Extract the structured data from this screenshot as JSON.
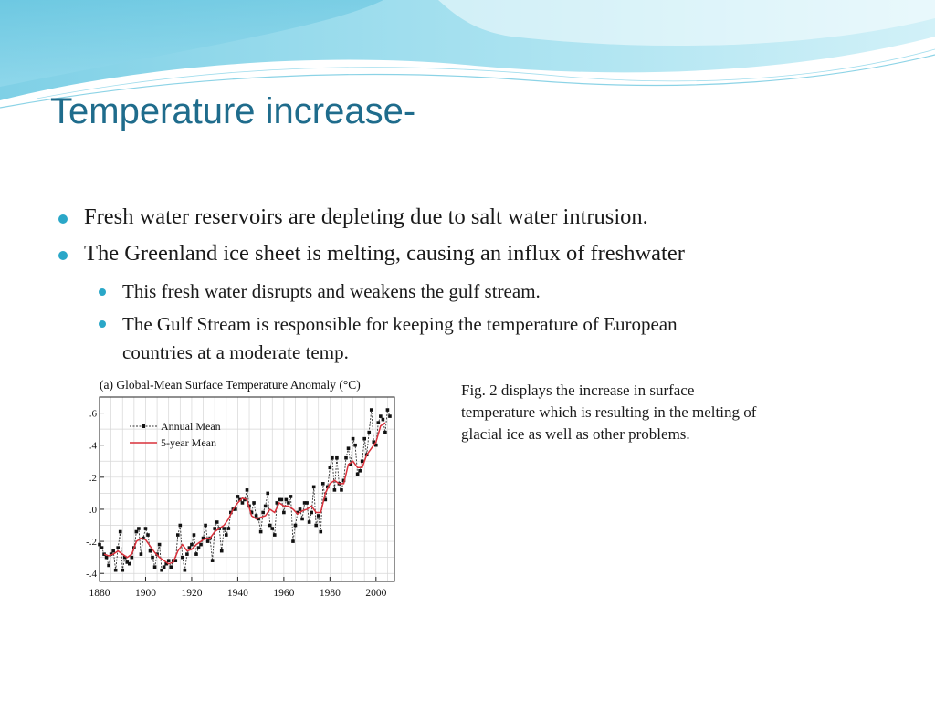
{
  "slide": {
    "title": "Temperature increase-",
    "bullets": [
      {
        "text": "Fresh water reservoirs are depleting due to salt water intrusion."
      },
      {
        "text": "The Greenland ice sheet is melting, causing an influx of freshwater"
      }
    ],
    "sub_bullets": [
      {
        "text": "This fresh water disrupts and weakens the gulf stream."
      },
      {
        "line1": "The Gulf Stream is responsible for keeping the temperature of European",
        "line2": "countries at a moderate temp."
      }
    ],
    "caption": " Fig. 2 displays the increase in surface\ntemperature which is resulting in the melting of\nglacial ice as well as other problems.",
    "colors": {
      "title": "#1f6c8c",
      "bullet": "#2aa7c8",
      "wave": "#7fd0e6",
      "five_year_line": "#d9303a"
    }
  },
  "chart_data": {
    "type": "line",
    "title": "(a)  Global-Mean Surface Temperature Anomaly (°C)",
    "xlim": [
      1880,
      2008
    ],
    "ylim": [
      -0.45,
      0.7
    ],
    "x_ticks": [
      1880,
      1900,
      1920,
      1940,
      1960,
      1980,
      2000
    ],
    "y_ticks": [
      ".6",
      ".4",
      ".2",
      ".0",
      "-.2",
      "-.4"
    ],
    "y_tick_values": [
      0.6,
      0.4,
      0.2,
      0.0,
      -0.2,
      -0.4
    ],
    "grid": true,
    "legend_position": "top-left",
    "series": [
      {
        "name": "Annual Mean",
        "style": "dashed-with-markers",
        "x": [
          1880,
          1881,
          1882,
          1883,
          1884,
          1885,
          1886,
          1887,
          1888,
          1889,
          1890,
          1891,
          1892,
          1893,
          1894,
          1895,
          1896,
          1897,
          1898,
          1899,
          1900,
          1901,
          1902,
          1903,
          1904,
          1905,
          1906,
          1907,
          1908,
          1909,
          1910,
          1911,
          1912,
          1913,
          1914,
          1915,
          1916,
          1917,
          1918,
          1919,
          1920,
          1921,
          1922,
          1923,
          1924,
          1925,
          1926,
          1927,
          1928,
          1929,
          1930,
          1931,
          1932,
          1933,
          1934,
          1935,
          1936,
          1937,
          1938,
          1939,
          1940,
          1941,
          1942,
          1943,
          1944,
          1945,
          1946,
          1947,
          1948,
          1949,
          1950,
          1951,
          1952,
          1953,
          1954,
          1955,
          1956,
          1957,
          1958,
          1959,
          1960,
          1961,
          1962,
          1963,
          1964,
          1965,
          1966,
          1967,
          1968,
          1969,
          1970,
          1971,
          1972,
          1973,
          1974,
          1975,
          1976,
          1977,
          1978,
          1979,
          1980,
          1981,
          1982,
          1983,
          1984,
          1985,
          1986,
          1987,
          1988,
          1989,
          1990,
          1991,
          1992,
          1993,
          1994,
          1995,
          1996,
          1997,
          1998,
          1999,
          2000,
          2001,
          2002,
          2003,
          2004,
          2005,
          2006
        ],
        "values": [
          -0.22,
          -0.24,
          -0.28,
          -0.3,
          -0.35,
          -0.28,
          -0.26,
          -0.38,
          -0.24,
          -0.14,
          -0.38,
          -0.3,
          -0.33,
          -0.34,
          -0.3,
          -0.24,
          -0.14,
          -0.12,
          -0.28,
          -0.18,
          -0.12,
          -0.16,
          -0.26,
          -0.3,
          -0.36,
          -0.28,
          -0.22,
          -0.38,
          -0.36,
          -0.34,
          -0.32,
          -0.36,
          -0.32,
          -0.32,
          -0.16,
          -0.1,
          -0.3,
          -0.38,
          -0.28,
          -0.24,
          -0.22,
          -0.16,
          -0.28,
          -0.24,
          -0.22,
          -0.18,
          -0.1,
          -0.2,
          -0.18,
          -0.32,
          -0.12,
          -0.08,
          -0.12,
          -0.26,
          -0.12,
          -0.16,
          -0.12,
          -0.02,
          0.0,
          0.0,
          0.08,
          0.06,
          0.04,
          0.06,
          0.12,
          0.02,
          -0.02,
          0.04,
          -0.04,
          -0.06,
          -0.14,
          -0.02,
          0.02,
          0.1,
          -0.1,
          -0.12,
          -0.16,
          0.04,
          0.06,
          0.06,
          -0.02,
          0.06,
          0.04,
          0.08,
          -0.2,
          -0.1,
          -0.02,
          0.0,
          -0.06,
          0.04,
          0.04,
          -0.08,
          -0.02,
          0.14,
          -0.1,
          -0.04,
          -0.14,
          0.16,
          0.06,
          0.14,
          0.26,
          0.32,
          0.12,
          0.32,
          0.16,
          0.12,
          0.18,
          0.32,
          0.38,
          0.28,
          0.44,
          0.4,
          0.22,
          0.24,
          0.3,
          0.44,
          0.34,
          0.48,
          0.62,
          0.42,
          0.4,
          0.54,
          0.58,
          0.56,
          0.48,
          0.62,
          0.58
        ]
      },
      {
        "name": "5-year Mean",
        "style": "solid",
        "x": [
          1882,
          1884,
          1886,
          1888,
          1890,
          1892,
          1894,
          1896,
          1898,
          1900,
          1902,
          1904,
          1906,
          1908,
          1910,
          1912,
          1914,
          1916,
          1918,
          1920,
          1922,
          1924,
          1926,
          1928,
          1930,
          1932,
          1934,
          1936,
          1938,
          1940,
          1942,
          1944,
          1946,
          1948,
          1950,
          1952,
          1954,
          1956,
          1958,
          1960,
          1962,
          1964,
          1966,
          1968,
          1970,
          1972,
          1974,
          1976,
          1978,
          1980,
          1982,
          1984,
          1986,
          1988,
          1990,
          1992,
          1994,
          1996,
          1998,
          2000,
          2002,
          2004
        ],
        "values": [
          -0.28,
          -0.29,
          -0.28,
          -0.26,
          -0.28,
          -0.3,
          -0.28,
          -0.2,
          -0.18,
          -0.19,
          -0.23,
          -0.27,
          -0.3,
          -0.32,
          -0.34,
          -0.33,
          -0.26,
          -0.22,
          -0.26,
          -0.25,
          -0.22,
          -0.2,
          -0.18,
          -0.18,
          -0.14,
          -0.12,
          -0.1,
          -0.06,
          0.0,
          0.04,
          0.07,
          0.06,
          -0.04,
          -0.06,
          -0.05,
          -0.04,
          0.0,
          -0.02,
          0.04,
          0.02,
          0.02,
          0.0,
          -0.03,
          -0.01,
          0.0,
          0.02,
          -0.02,
          -0.02,
          0.1,
          0.16,
          0.18,
          0.16,
          0.16,
          0.28,
          0.3,
          0.26,
          0.26,
          0.34,
          0.38,
          0.42,
          0.52,
          0.54
        ]
      }
    ]
  }
}
